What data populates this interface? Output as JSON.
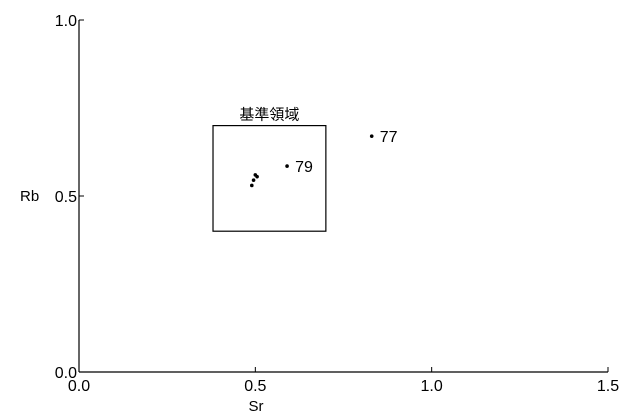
{
  "chart_data": {
    "type": "scatter",
    "xlabel": "Sr",
    "ylabel": "Rb",
    "xlim": [
      0.0,
      1.5
    ],
    "ylim": [
      0.0,
      1.0
    ],
    "x_ticks": [
      {
        "value": 0.0,
        "label": "0.0"
      },
      {
        "value": 0.5,
        "label": "0.5"
      },
      {
        "value": 1.0,
        "label": "1.0"
      },
      {
        "value": 1.5,
        "label": "1.5"
      }
    ],
    "y_ticks": [
      {
        "value": 0.0,
        "label": "0.0"
      },
      {
        "value": 0.5,
        "label": "0.5"
      },
      {
        "value": 1.0,
        "label": "1.0"
      }
    ],
    "grid": false,
    "region": {
      "label": "基準領域",
      "x_range": [
        0.38,
        0.7
      ],
      "y_range": [
        0.4,
        0.7
      ]
    },
    "points": [
      {
        "x": 0.49,
        "y": 0.53,
        "label": ""
      },
      {
        "x": 0.495,
        "y": 0.545,
        "label": ""
      },
      {
        "x": 0.5,
        "y": 0.56,
        "label": ""
      },
      {
        "x": 0.505,
        "y": 0.555,
        "label": ""
      },
      {
        "x": 0.59,
        "y": 0.585,
        "label": "79"
      },
      {
        "x": 0.83,
        "y": 0.67,
        "label": "77"
      }
    ]
  }
}
